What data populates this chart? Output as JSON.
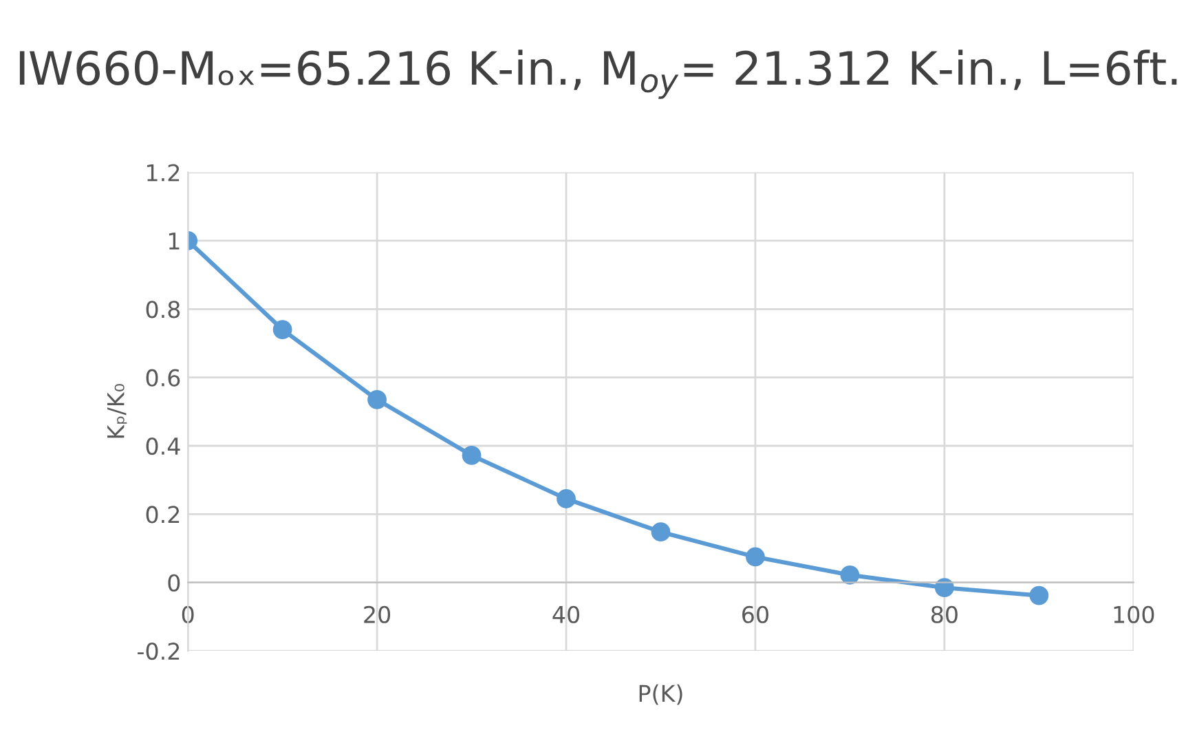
{
  "chart_data": {
    "type": "line",
    "title": "IW660-Mₒₓ=65.216 K-in., M$_{oy}$= 21.312 K-in., L=6ft.",
    "xlabel": "P(K)",
    "ylabel": "Kₚ/K₀",
    "x": [
      0,
      10,
      20,
      30,
      40,
      50,
      60,
      70,
      80,
      90
    ],
    "series": [
      {
        "color": "#5b9bd5",
        "values": [
          1,
          0.74,
          0.535,
          0.372,
          0.245,
          0.148,
          0.075,
          0.022,
          -0.015,
          -0.038
        ]
      }
    ],
    "xlim": [
      0,
      100
    ],
    "xticks": [
      0,
      20,
      40,
      60,
      80,
      100
    ],
    "ylim": [
      -0.2,
      1.2
    ],
    "yticks": [
      -0.2,
      0,
      0.2,
      0.4,
      0.6,
      0.8,
      1,
      1.2
    ],
    "grid": true,
    "marker": "circle",
    "line_style": "solid"
  }
}
